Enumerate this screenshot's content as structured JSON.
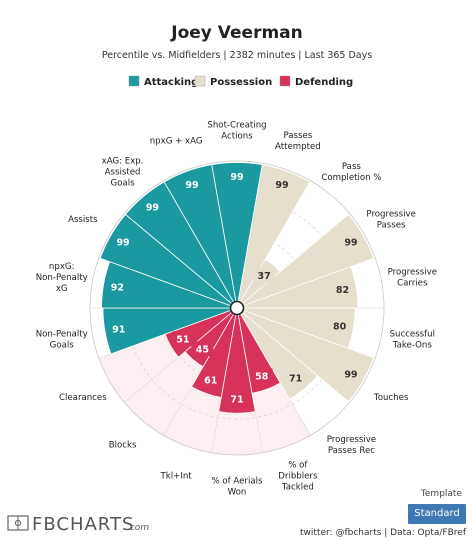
{
  "header": {
    "title": "Joey Veerman",
    "subtitle": "Percentile vs. Midfielders | 2382 minutes | Last 365 Days"
  },
  "legend": [
    {
      "label": "Attacking",
      "color": "#1a9aa0"
    },
    {
      "label": "Possession",
      "color": "#e6dfcd"
    },
    {
      "label": "Defending",
      "color": "#d6325a"
    }
  ],
  "template": {
    "label": "Template",
    "button": "Standard"
  },
  "footer": {
    "logo": "FBCHARTS",
    "logo_suffix": ".com",
    "credits": "twitter: @fbcharts | Data: Opta/FBref"
  },
  "chart_data": {
    "type": "polar-bar",
    "range": [
      0,
      100
    ],
    "categories": [
      {
        "label": "Shot-Creating Actions",
        "value": 99,
        "group": "Attacking"
      },
      {
        "label": "Passes Attempted",
        "value": 99,
        "group": "Possession"
      },
      {
        "label": "Pass Completion %",
        "value": 37,
        "group": "Possession"
      },
      {
        "label": "Progressive Passes",
        "value": 99,
        "group": "Possession"
      },
      {
        "label": "Progressive Carries",
        "value": 82,
        "group": "Possession"
      },
      {
        "label": "Successful Take-Ons",
        "value": 80,
        "group": "Possession"
      },
      {
        "label": "Touches",
        "value": 99,
        "group": "Possession"
      },
      {
        "label": "Progressive Passes Rec",
        "value": 71,
        "group": "Possession"
      },
      {
        "label": "% of Dribblers Tackled",
        "value": 58,
        "group": "Defending"
      },
      {
        "label": "% of Aerials Won",
        "value": 71,
        "group": "Defending"
      },
      {
        "label": "Tkl+Int",
        "value": 61,
        "group": "Defending"
      },
      {
        "label": "Blocks",
        "value": 45,
        "group": "Defending"
      },
      {
        "label": "Clearances",
        "value": 51,
        "group": "Defending"
      },
      {
        "label": "Non-Penalty Goals",
        "value": 91,
        "group": "Attacking"
      },
      {
        "label": "npxG: Non-Penalty xG",
        "value": 92,
        "group": "Attacking"
      },
      {
        "label": "Assists",
        "value": 99,
        "group": "Attacking"
      },
      {
        "label": "xAG: Exp. Assisted Goals",
        "value": 99,
        "group": "Attacking"
      },
      {
        "label": "npxG + xAG",
        "value": 99,
        "group": "Attacking"
      }
    ],
    "group_colors": {
      "Attacking": {
        "bar": "#1a9aa0",
        "background": "#ffffff",
        "text": "#ffffff"
      },
      "Possession": {
        "bar": "#e6dfcd",
        "background": "#ffffff",
        "text": "#333333"
      },
      "Defending": {
        "bar": "#d6325a",
        "background": "#fdeef1",
        "text": "#ffffff"
      }
    },
    "grid": true
  }
}
